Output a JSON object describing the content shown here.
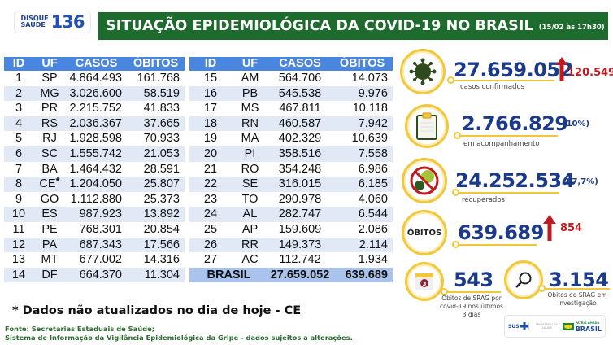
{
  "header": {
    "logo_top": "DISQUE",
    "logo_bottom": "SAÚDE",
    "logo_number": "136",
    "title": "SITUAÇÃO EPIDEMIOLÓGICA DA COVID-19 NO BRASIL",
    "timestamp": "(15/02 às 17h30)"
  },
  "table": {
    "columns": [
      "ID",
      "UF",
      "CASOS",
      "ÓBITOS"
    ],
    "left_rows": [
      {
        "id": "1",
        "uf": "SP",
        "casos": "4.864.493",
        "obitos": "161.768"
      },
      {
        "id": "2",
        "uf": "MG",
        "casos": "3.026.600",
        "obitos": "58.519"
      },
      {
        "id": "3",
        "uf": "PR",
        "casos": "2.215.752",
        "obitos": "41.833"
      },
      {
        "id": "4",
        "uf": "RS",
        "casos": "2.036.367",
        "obitos": "37.665"
      },
      {
        "id": "5",
        "uf": "RJ",
        "casos": "1.928.598",
        "obitos": "70.933"
      },
      {
        "id": "6",
        "uf": "SC",
        "casos": "1.555.742",
        "obitos": "21.053"
      },
      {
        "id": "7",
        "uf": "BA",
        "casos": "1.464.432",
        "obitos": "28.591"
      },
      {
        "id": "8",
        "uf": "CE",
        "casos": "1.204.050",
        "obitos": "25.807",
        "mark": "*"
      },
      {
        "id": "9",
        "uf": "GO",
        "casos": "1.112.880",
        "obitos": "25.373"
      },
      {
        "id": "10",
        "uf": "ES",
        "casos": "987.923",
        "obitos": "13.892"
      },
      {
        "id": "11",
        "uf": "PE",
        "casos": "768.301",
        "obitos": "20.854"
      },
      {
        "id": "12",
        "uf": "PA",
        "casos": "687.343",
        "obitos": "17.566"
      },
      {
        "id": "13",
        "uf": "MT",
        "casos": "677.002",
        "obitos": "14.316"
      },
      {
        "id": "14",
        "uf": "DF",
        "casos": "664.370",
        "obitos": "11.304"
      }
    ],
    "right_rows": [
      {
        "id": "15",
        "uf": "AM",
        "casos": "564.706",
        "obitos": "14.073"
      },
      {
        "id": "16",
        "uf": "PB",
        "casos": "545.538",
        "obitos": "9.976"
      },
      {
        "id": "17",
        "uf": "MS",
        "casos": "467.811",
        "obitos": "10.118"
      },
      {
        "id": "18",
        "uf": "RN",
        "casos": "460.587",
        "obitos": "7.942"
      },
      {
        "id": "19",
        "uf": "MA",
        "casos": "402.329",
        "obitos": "10.639"
      },
      {
        "id": "20",
        "uf": "PI",
        "casos": "358.516",
        "obitos": "7.558"
      },
      {
        "id": "21",
        "uf": "RO",
        "casos": "354.248",
        "obitos": "6.986"
      },
      {
        "id": "22",
        "uf": "SE",
        "casos": "316.015",
        "obitos": "6.185"
      },
      {
        "id": "23",
        "uf": "TO",
        "casos": "290.978",
        "obitos": "4.060"
      },
      {
        "id": "24",
        "uf": "AL",
        "casos": "282.747",
        "obitos": "6.544"
      },
      {
        "id": "25",
        "uf": "AP",
        "casos": "159.609",
        "obitos": "2.086"
      },
      {
        "id": "26",
        "uf": "RR",
        "casos": "149.373",
        "obitos": "2.114"
      },
      {
        "id": "27",
        "uf": "AC",
        "casos": "112.742",
        "obitos": "1.934"
      }
    ],
    "total": {
      "label": "BRASIL",
      "casos": "27.659.052",
      "obitos": "639.689"
    }
  },
  "stats": {
    "confirmed": {
      "value": "27.659.052",
      "label": "casos confirmados",
      "delta": "120.549",
      "icon": "virus-icon"
    },
    "monitoring": {
      "value": "2.766.829",
      "pct": "(10%)",
      "label": "em acompanhamento",
      "icon": "clipboard-icon"
    },
    "recovered": {
      "value": "24.252.534",
      "pct": "(87,7%)",
      "label": "recuperados",
      "icon": "no-virus-icon"
    },
    "deaths": {
      "badge": "ÓBITOS",
      "value": "639.689",
      "delta": "854"
    },
    "srag_recent": {
      "value": "543",
      "label_lines": [
        "Óbitos de SRAG por",
        "covid-19 nos últimos",
        "3 dias"
      ],
      "calendar_day": "3",
      "icon": "calendar-icon"
    },
    "srag_investigation": {
      "value": "3.154",
      "label_lines": [
        "Óbitos de SRAG em",
        "investigação"
      ],
      "icon": "magnifier-icon"
    }
  },
  "gov_logos": {
    "sus": "SUS",
    "ministry": "MINISTÉRIO DA SAÚDE",
    "patria": "PÁTRIA AMADA",
    "brasil": "BRASIL"
  },
  "footer": {
    "note": "* Dados não atualizados no dia de hoje - CE",
    "source_1": "Fonte: Secretarias Estaduais de Saúde;",
    "source_2": "Sistema de Informação da Vigilância Epidemiológica da Gripe - dados sujeitos a alterações."
  },
  "colors": {
    "header_green": "#1e6b2e",
    "table_header_blue": "#4a86e0",
    "row_alt": "#e1e9f6",
    "total_row": "#a9c3ec",
    "stat_blue": "#1b3a8a",
    "delta_red": "#c0191f",
    "ring_yellow": "#f2c83a"
  }
}
